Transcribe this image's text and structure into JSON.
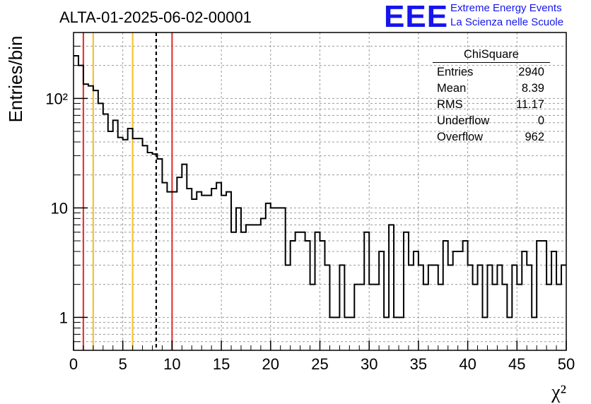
{
  "title": "ALTA-01-2025-06-02-00001",
  "logo": {
    "mark": "EEE",
    "line1": "Extreme Energy Events",
    "line2": "La Scienza nelle Scuole",
    "color": "#1515ee"
  },
  "stats": {
    "title": "ChiSquare",
    "rows": [
      {
        "label": "Entries",
        "value": "2940"
      },
      {
        "label": "Mean",
        "value": "8.39"
      },
      {
        "label": "RMS",
        "value": "11.17"
      },
      {
        "label": "Underflow",
        "value": "0"
      },
      {
        "label": "Overflow",
        "value": "962"
      }
    ]
  },
  "chart_data": {
    "type": "bar",
    "title": "ALTA-01-2025-06-02-00001",
    "xlabel": "χ²",
    "ylabel": "Entries/bin",
    "xlim": [
      0,
      50
    ],
    "ylim": [
      0.5,
      400
    ],
    "yscale": "log",
    "grid": true,
    "bin_width": 0.5,
    "x_ticks": [
      0,
      5,
      10,
      15,
      20,
      25,
      30,
      35,
      40,
      45,
      50
    ],
    "y_tick_labels": [
      "1",
      "10",
      "10²"
    ],
    "y_tick_values": [
      1,
      10,
      100
    ],
    "values": [
      245,
      200,
      135,
      130,
      118,
      90,
      72,
      50,
      63,
      44,
      42,
      53,
      43,
      43,
      37,
      32,
      31,
      28,
      17,
      14,
      14,
      19,
      25,
      15,
      12,
      14,
      13,
      13,
      15,
      17,
      13,
      14,
      6,
      10,
      6,
      7,
      7,
      7,
      8,
      11,
      10,
      10,
      10,
      3,
      5,
      6,
      6,
      5,
      2,
      6,
      5,
      3,
      1,
      1,
      3,
      1,
      1,
      2,
      2,
      6,
      2,
      2,
      4,
      1,
      7,
      1,
      1,
      6,
      3,
      4,
      3,
      2,
      3,
      3,
      2,
      5,
      3,
      4,
      4,
      5,
      3,
      2,
      3,
      1,
      3,
      2,
      3,
      2,
      1,
      3,
      2,
      4,
      3,
      1,
      5,
      5,
      2,
      4,
      2,
      3
    ]
  },
  "vertical_lines": [
    {
      "x": 1,
      "color": "#e53935",
      "style": "solid"
    },
    {
      "x": 2,
      "color": "#f4c430",
      "style": "solid"
    },
    {
      "x": 6,
      "color": "#f4c430",
      "style": "solid"
    },
    {
      "x": 8.39,
      "color": "#000000",
      "style": "dashed"
    },
    {
      "x": 10,
      "color": "#e53935",
      "style": "solid"
    }
  ]
}
